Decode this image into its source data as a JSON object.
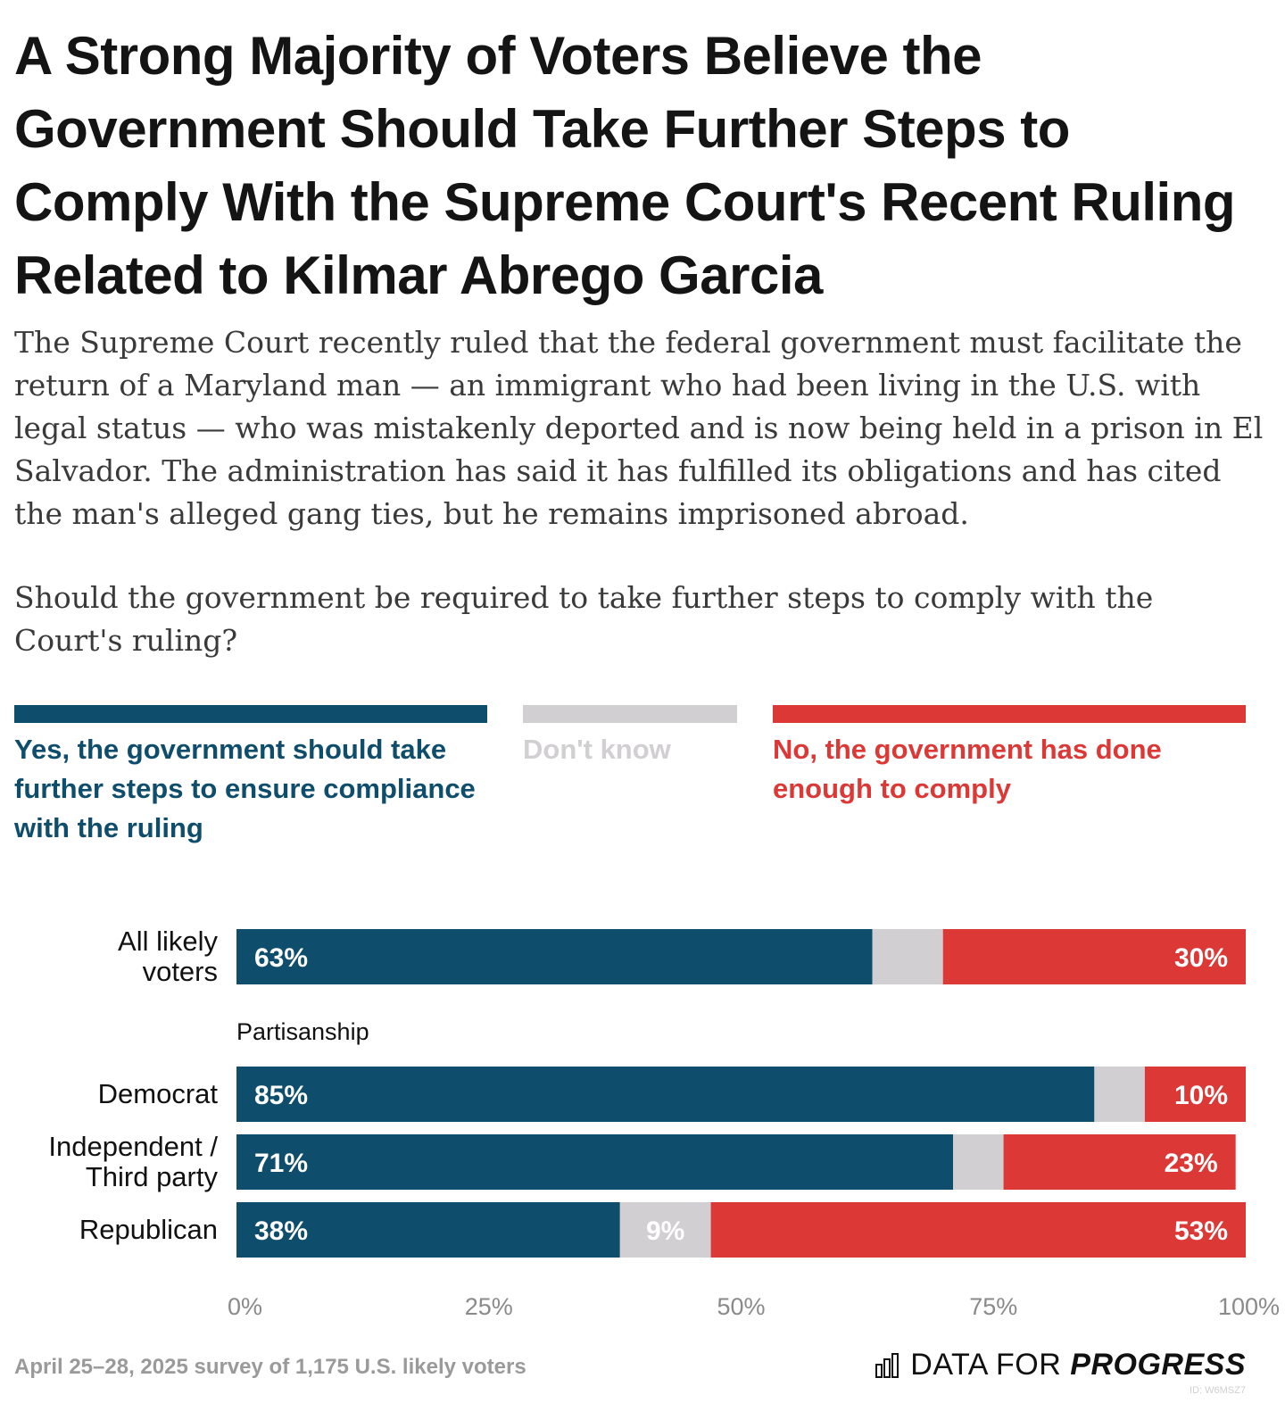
{
  "title": "A Strong Majority of Voters Believe the Government Should Take Further Steps to Comply With the Supreme Court's Recent Ruling Related to Kilmar Abrego Garcia",
  "subtitle": "The Supreme Court recently ruled that the federal government must facilitate the return of a Maryland man — an immigrant who had been living in the U.S. with legal status — who was mistakenly deported and is now being held in a prison in El Salvador. The administration has said it has fulfilled its obligations and has cited the man's alleged gang ties, but he remains imprisoned abroad.",
  "question": "Should the government be required to take further steps to comply with the Court's ruling?",
  "legend": [
    {
      "label": "Yes, the government should take further steps to ensure compliance with the ruling",
      "color": "#0e4d6b"
    },
    {
      "label": "Don't know",
      "color": "#d2cfd2"
    },
    {
      "label": "No, the government has done enough to comply",
      "color": "#dc3836"
    }
  ],
  "chart_data": {
    "type": "bar",
    "orientation": "horizontal",
    "stacked": true,
    "series": [
      {
        "name": "Yes, the government should take further steps to ensure compliance with the ruling",
        "color": "#0e4d6b"
      },
      {
        "name": "Don't know",
        "color": "#d2cfd2"
      },
      {
        "name": "No, the government has done enough to comply",
        "color": "#dc3836"
      }
    ],
    "rows": [
      {
        "label": "All likely voters",
        "group": "",
        "values": [
          63,
          7,
          30
        ],
        "labels": [
          "63%",
          "",
          "30%"
        ]
      },
      {
        "label": "Democrat",
        "group": "Partisanship",
        "values": [
          85,
          5,
          10
        ],
        "labels": [
          "85%",
          "",
          "10%"
        ]
      },
      {
        "label": "Independent / Third party",
        "group": "Partisanship",
        "values": [
          71,
          5,
          23
        ],
        "labels": [
          "71%",
          "",
          "23%"
        ]
      },
      {
        "label": "Republican",
        "group": "Partisanship",
        "values": [
          38,
          9,
          53
        ],
        "labels": [
          "38%",
          "9%",
          "53%"
        ]
      }
    ],
    "group_label": "Partisanship",
    "xlim": [
      0,
      100
    ],
    "xticks": [
      "0%",
      "25%",
      "50%",
      "75%",
      "100%"
    ],
    "grid": false,
    "legend_position": "top"
  },
  "footer": {
    "note": "April 25–28, 2025 survey of 1,175 U.S. likely voters",
    "brand_regular": "DATA FOR",
    "brand_bold": "PROGRESS",
    "chart_id": "ID: W6MSZ7"
  }
}
